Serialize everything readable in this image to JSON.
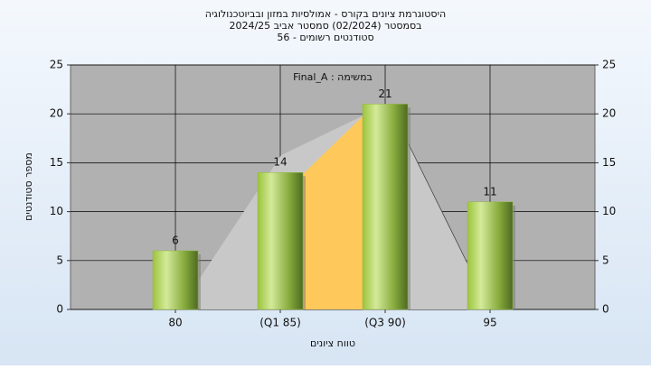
{
  "chart_data": {
    "type": "bar",
    "title": "היסטוגרמת ציונים בקורס - אמולסיות במזון ובביוטכנולוגיה",
    "subtitle": "בסמסטר  (02/2024)  סמסטר אביב 2024/25",
    "subtitle2": "סטודנטים רשומים - 56",
    "annotation": "במשימה : Final_A",
    "x_label": "טווח ציונים",
    "y_label": "מספר סטודנטים",
    "categories": [
      "80",
      "(Q1 85)",
      "(Q3 90)",
      "95"
    ],
    "values": [
      6,
      14,
      21,
      11
    ],
    "color": "#8fb840",
    "ylim": [
      0,
      25
    ],
    "yticks": [
      0,
      5,
      10,
      15,
      20,
      25
    ],
    "grid": true
  }
}
